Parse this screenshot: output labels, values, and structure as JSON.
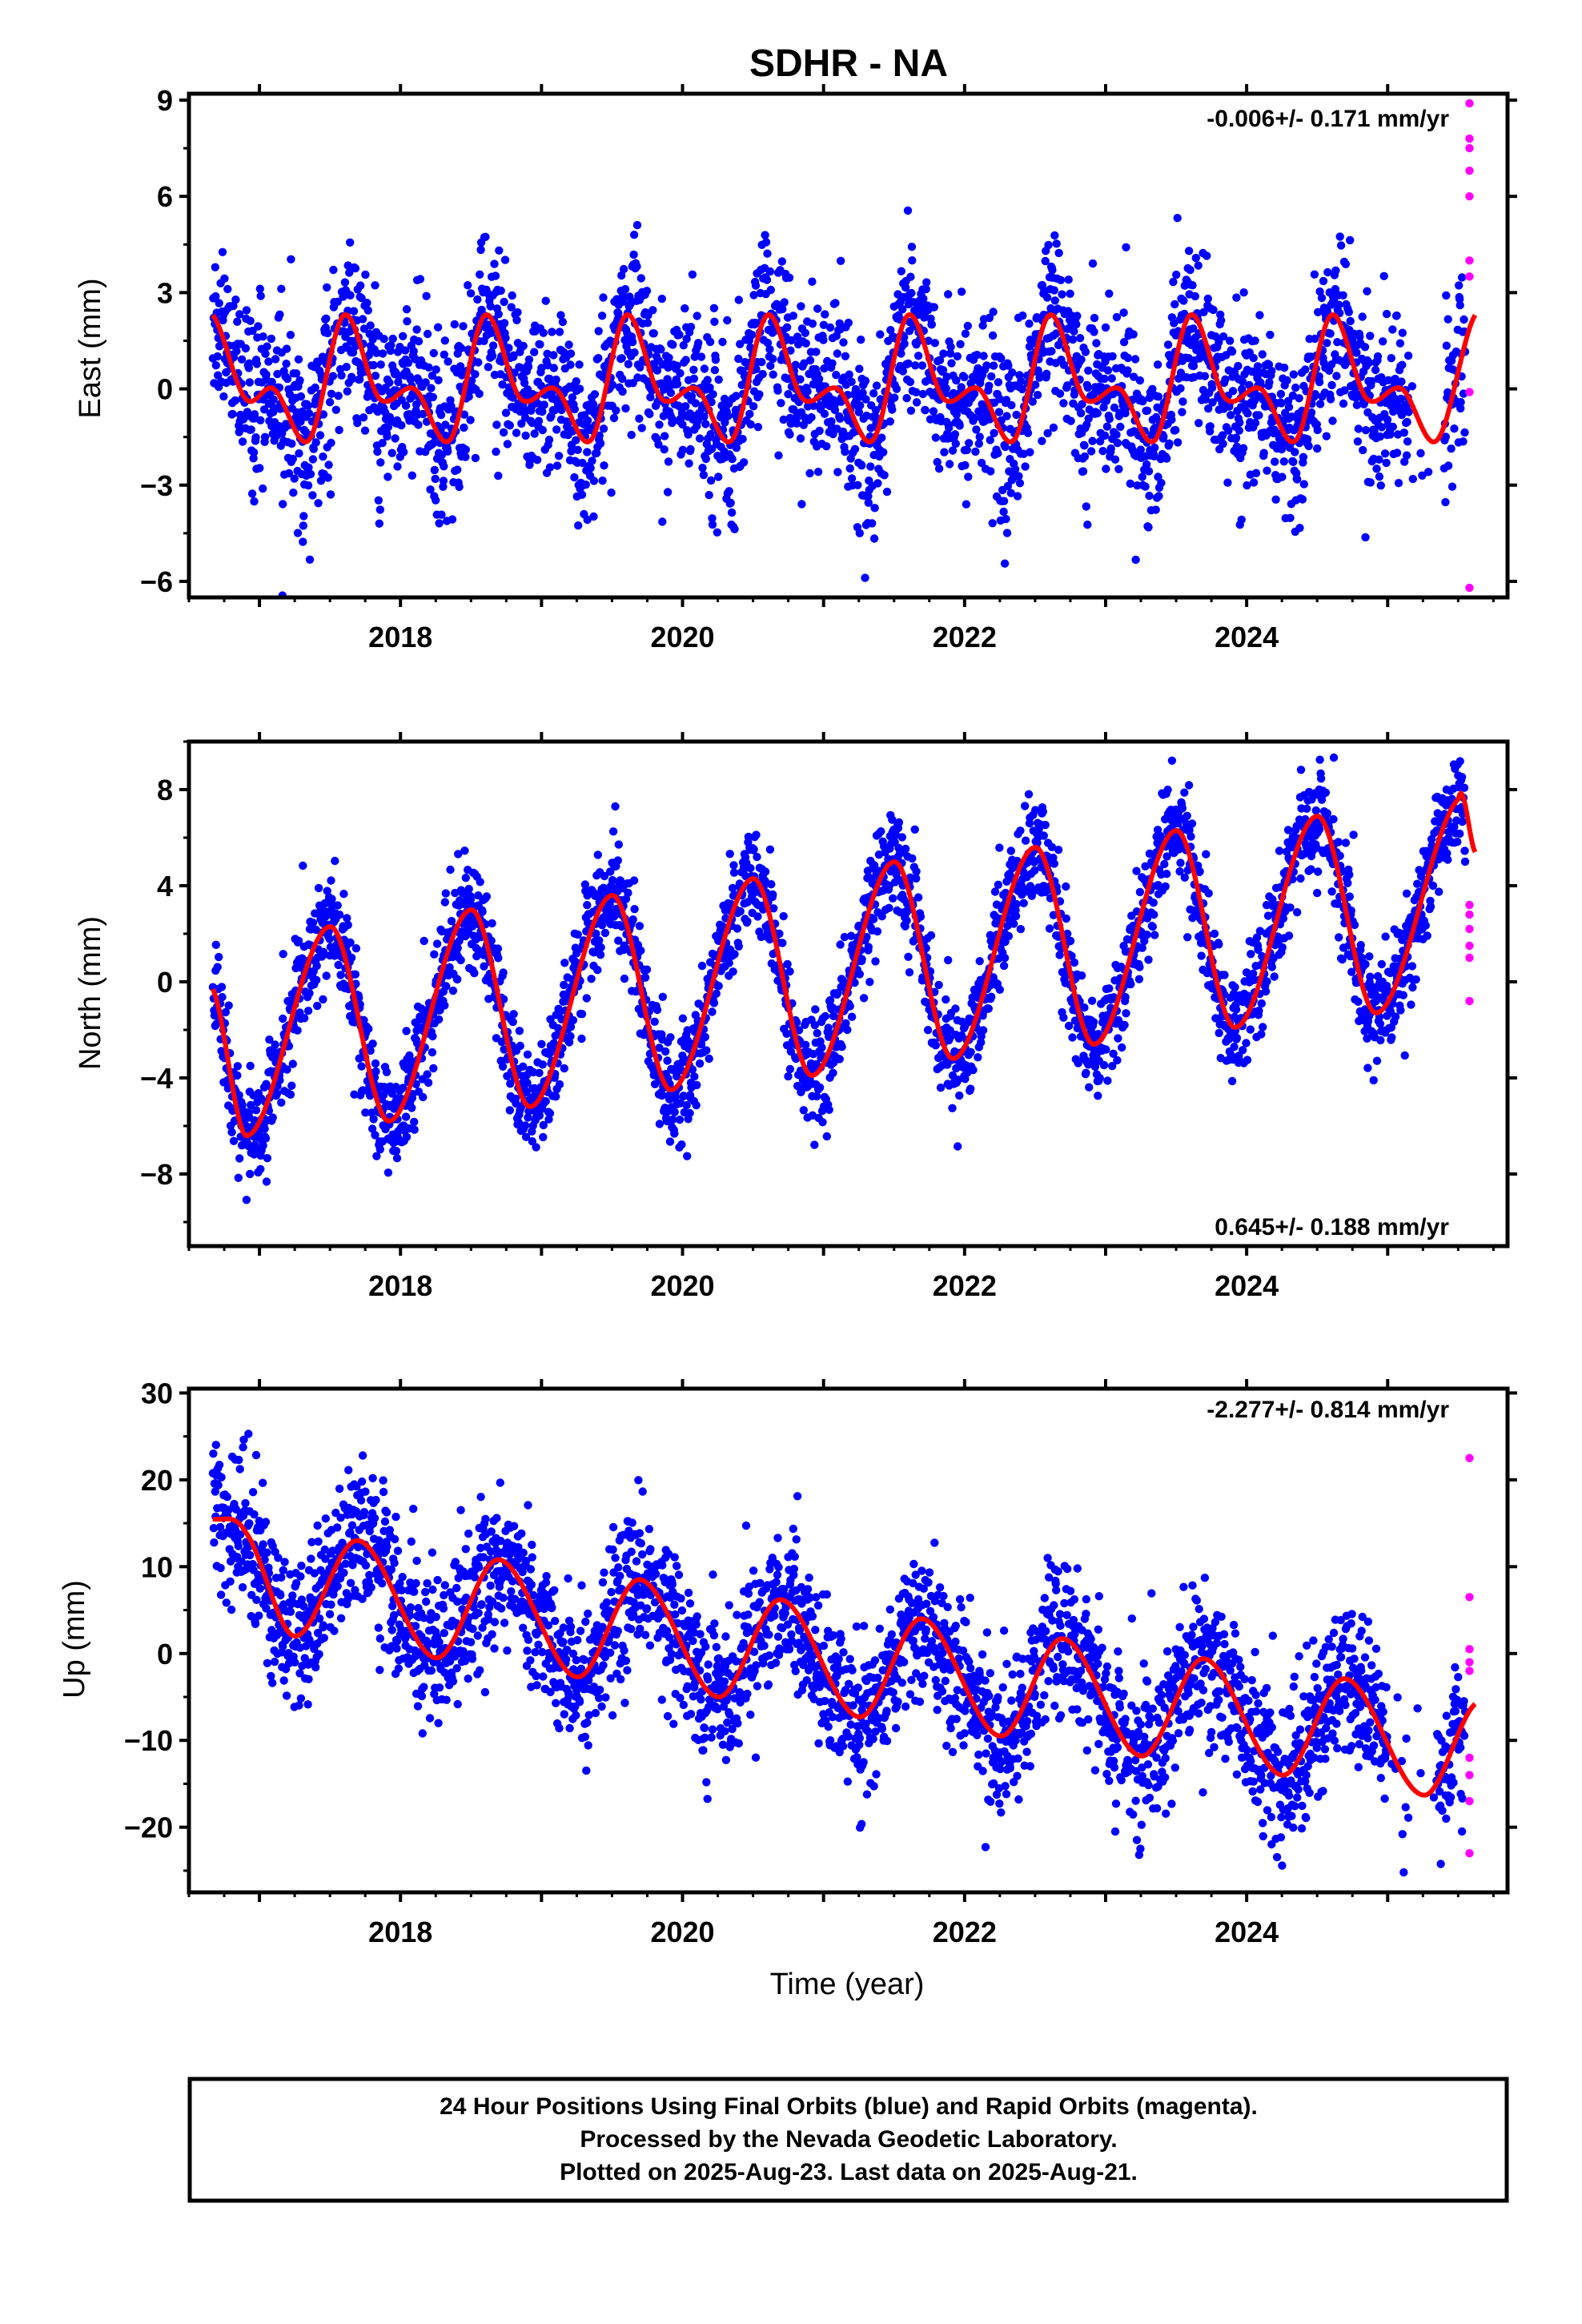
{
  "title": "SDHR - NA",
  "colors": {
    "final": "#0000ff",
    "rapid": "#ff00ff",
    "model": "#ff0000",
    "frame": "#000000"
  },
  "x_label": "Time (year)",
  "footer": {
    "line1": "24 Hour Positions Using Final Orbits (blue) and Rapid Orbits (magenta).",
    "line2": "Processed by the Nevada Geodetic Laboratory.",
    "line3": "Plotted on 2025-Aug-23. Last data on 2025-Aug-21."
  },
  "chart_data": [
    {
      "type": "scatter",
      "component": "east",
      "ylabel": "East (mm)",
      "rate_label": "-0.006+/- 0.171 mm/yr",
      "xlim": [
        2016.5,
        2025.85
      ],
      "ylim": [
        -6.5,
        9.2
      ],
      "yticks": [
        -6,
        -3,
        0,
        3,
        6,
        9
      ],
      "xticks": [
        2018,
        2020,
        2022,
        2024
      ],
      "rate": -0.006,
      "model_anchors": [
        [
          2016.67,
          2.3
        ],
        [
          2016.9,
          -0.3
        ],
        [
          2017.1,
          -0.0
        ],
        [
          2017.35,
          -1.6
        ],
        [
          2017.6,
          2.3
        ],
        [
          2017.85,
          -0.3
        ],
        [
          2018.1,
          -0.0
        ],
        [
          2018.35,
          -1.6
        ],
        [
          2018.6,
          2.3
        ],
        [
          2018.85,
          -0.3
        ],
        [
          2019.1,
          -0.0
        ],
        [
          2019.35,
          -1.6
        ],
        [
          2019.6,
          2.3
        ],
        [
          2019.85,
          -0.3
        ],
        [
          2020.1,
          -0.0
        ],
        [
          2020.35,
          -1.6
        ],
        [
          2020.6,
          2.3
        ],
        [
          2020.85,
          -0.3
        ],
        [
          2021.1,
          -0.0
        ],
        [
          2021.35,
          -1.6
        ],
        [
          2021.6,
          2.3
        ],
        [
          2021.85,
          -0.3
        ],
        [
          2022.1,
          -0.0
        ],
        [
          2022.35,
          -1.6
        ],
        [
          2022.6,
          2.3
        ],
        [
          2022.85,
          -0.3
        ],
        [
          2023.1,
          -0.0
        ],
        [
          2023.35,
          -1.6
        ],
        [
          2023.6,
          2.3
        ],
        [
          2023.85,
          -0.3
        ],
        [
          2024.1,
          -0.0
        ],
        [
          2024.35,
          -1.6
        ],
        [
          2024.6,
          2.3
        ],
        [
          2024.85,
          -0.3
        ],
        [
          2025.1,
          -0.0
        ],
        [
          2025.35,
          -1.6
        ],
        [
          2025.62,
          2.3
        ]
      ],
      "scatter_sd": 1.3,
      "gap_ranges": [
        [
          2025.15,
          2025.4
        ]
      ],
      "final_range": [
        2016.67,
        2025.55
      ],
      "rapid_points": [
        [
          2025.58,
          8.9
        ],
        [
          2025.58,
          7.8
        ],
        [
          2025.58,
          7.5
        ],
        [
          2025.58,
          6.8
        ],
        [
          2025.58,
          6.0
        ],
        [
          2025.58,
          4.0
        ],
        [
          2025.58,
          3.5
        ],
        [
          2025.58,
          -0.1
        ],
        [
          2025.58,
          -6.2
        ]
      ]
    },
    {
      "type": "scatter",
      "component": "north",
      "ylabel": "North (mm)",
      "rate_label": "0.645+/- 0.188 mm/yr",
      "xlim": [
        2016.5,
        2025.85
      ],
      "ylim": [
        -11.0,
        10.0
      ],
      "yticks": [
        -8,
        -4,
        0,
        4,
        8
      ],
      "xticks": [
        2018,
        2020,
        2022,
        2024
      ],
      "rate": 0.645,
      "model_anchors": [
        [
          2016.67,
          -0.3
        ],
        [
          2016.92,
          -6.4
        ],
        [
          2017.5,
          2.3
        ],
        [
          2017.92,
          -5.8
        ],
        [
          2018.5,
          3.0
        ],
        [
          2018.92,
          -5.2
        ],
        [
          2019.5,
          3.6
        ],
        [
          2019.92,
          -4.5
        ],
        [
          2020.5,
          4.3
        ],
        [
          2020.92,
          -3.9
        ],
        [
          2021.5,
          5.0
        ],
        [
          2021.92,
          -3.2
        ],
        [
          2022.5,
          5.6
        ],
        [
          2022.92,
          -2.6
        ],
        [
          2023.5,
          6.3
        ],
        [
          2023.92,
          -1.9
        ],
        [
          2024.5,
          6.9
        ],
        [
          2024.92,
          -1.3
        ],
        [
          2025.5,
          7.6
        ],
        [
          2025.62,
          5.4
        ]
      ],
      "scatter_sd": 1.1,
      "gap_ranges": [],
      "final_range": [
        2016.67,
        2025.55
      ],
      "rapid_points": [
        [
          2025.58,
          3.2
        ],
        [
          2025.58,
          2.8
        ],
        [
          2025.58,
          2.2
        ],
        [
          2025.58,
          1.5
        ],
        [
          2025.58,
          1.0
        ],
        [
          2025.58,
          -0.8
        ]
      ]
    },
    {
      "type": "scatter",
      "component": "up",
      "ylabel": "Up (mm)",
      "rate_label": "-2.277+/- 0.814 mm/yr",
      "xlim": [
        2016.5,
        2025.85
      ],
      "ylim": [
        -27.5,
        30.5
      ],
      "yticks": [
        -20,
        -10,
        0,
        10,
        20,
        30
      ],
      "xticks": [
        2018,
        2020,
        2022,
        2024
      ],
      "rate": -2.277,
      "model_anchors": [
        [
          2016.67,
          15.5
        ],
        [
          2016.9,
          14.0
        ],
        [
          2017.25,
          2.0
        ],
        [
          2017.7,
          13.0
        ],
        [
          2018.25,
          -0.5
        ],
        [
          2018.7,
          10.8
        ],
        [
          2019.25,
          -2.7
        ],
        [
          2019.7,
          8.5
        ],
        [
          2020.25,
          -5.0
        ],
        [
          2020.7,
          6.2
        ],
        [
          2021.25,
          -7.3
        ],
        [
          2021.7,
          4.0
        ],
        [
          2022.25,
          -9.5
        ],
        [
          2022.7,
          1.7
        ],
        [
          2023.25,
          -11.8
        ],
        [
          2023.7,
          -0.6
        ],
        [
          2024.25,
          -14.0
        ],
        [
          2024.7,
          -2.9
        ],
        [
          2025.25,
          -16.3
        ],
        [
          2025.62,
          -5.8
        ]
      ],
      "scatter_sd": 4.2,
      "gap_ranges": [
        [
          2025.0,
          2025.35
        ]
      ],
      "final_range": [
        2016.67,
        2025.55
      ],
      "rapid_points": [
        [
          2025.58,
          22.5
        ],
        [
          2025.58,
          6.5
        ],
        [
          2025.58,
          0.5
        ],
        [
          2025.58,
          -1.0
        ],
        [
          2025.58,
          -2.0
        ],
        [
          2025.58,
          -12.0
        ],
        [
          2025.58,
          -14.0
        ],
        [
          2025.58,
          -17.0
        ],
        [
          2025.58,
          -23.0
        ]
      ]
    }
  ]
}
